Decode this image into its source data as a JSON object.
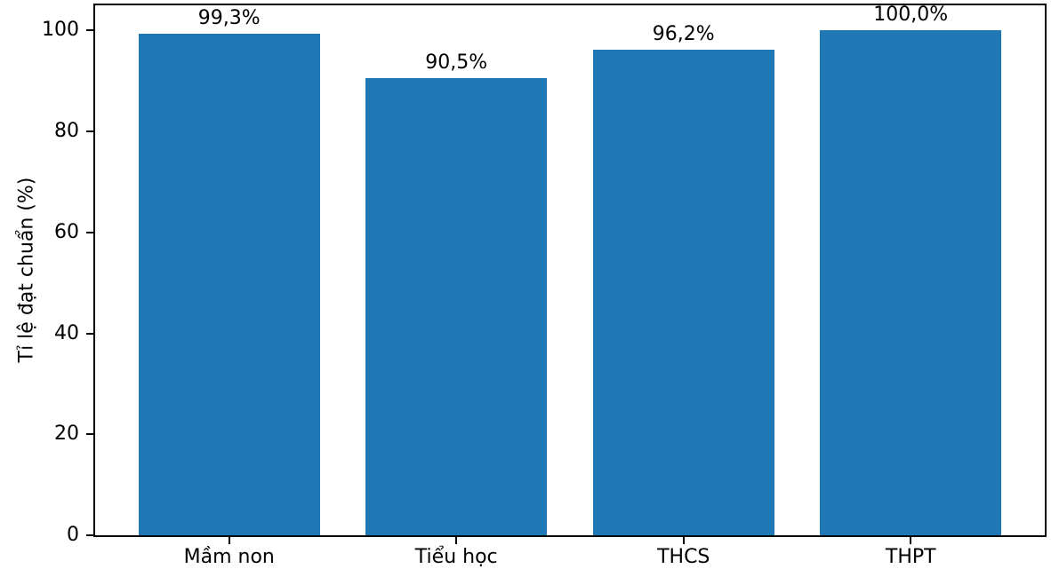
{
  "figure": {
    "background_color": "#ffffff"
  },
  "chart_data": {
    "type": "bar",
    "title": "",
    "xlabel": "",
    "ylabel": "Tỉ lệ đạt chuẩn (%)",
    "categories": [
      "Mầm non",
      "Tiểu học",
      "THCS",
      "THPT"
    ],
    "values": [
      99.3,
      90.5,
      96.2,
      100.0
    ],
    "bar_labels": [
      "99,3%",
      "90,5%",
      "96,2%",
      "100,0%"
    ],
    "yticks": [
      0,
      20,
      40,
      60,
      80,
      100
    ],
    "ylim": [
      0,
      105
    ],
    "bar_color": "#1f77b4",
    "spine_color": "#000000",
    "text_color": "#000000",
    "grid": false,
    "legend": null
  }
}
